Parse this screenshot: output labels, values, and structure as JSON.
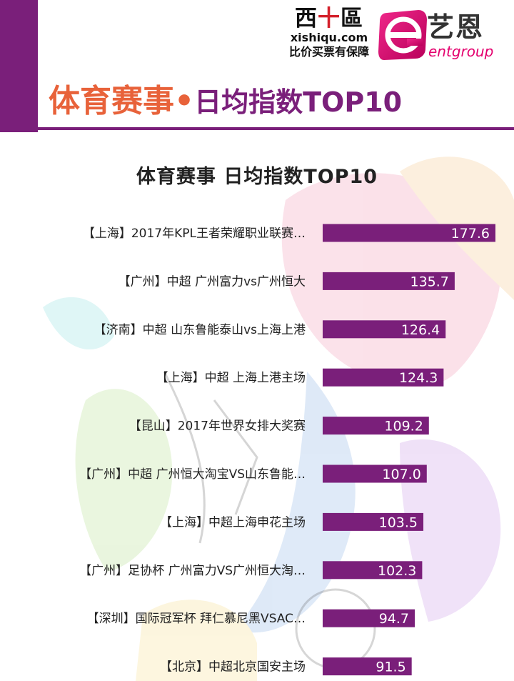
{
  "header": {
    "brand_logo": {
      "chars": [
        "西",
        "十",
        "區"
      ],
      "domain": "xishiqu.com",
      "slogan": "比价买票有保障",
      "accent_color": "#d4202a"
    },
    "partner_logo": {
      "name_cn": "艺恩",
      "name_en": "entgroup",
      "icon": "e-badge-icon",
      "accent_color": "#e4006e"
    },
    "title": {
      "part1": "体育赛事",
      "separator": "•",
      "part2": "日均指数TOP10"
    }
  },
  "colors": {
    "band": "#7a1f7a",
    "bar": "#7a1f7a",
    "title_orange": "#e8623a"
  },
  "chart_data": {
    "type": "bar",
    "orientation": "horizontal",
    "title": "体育赛事  日均指数TOP10",
    "categories": [
      "【上海】2017年KPL王者荣耀职业联赛…",
      "【广州】中超 广州富力vs广州恒大",
      "【济南】中超 山东鲁能泰山vs上海上港",
      "【上海】中超  上海上港主场",
      "【昆山】2017年世界女排大奖赛",
      "【广州】中超 广州恒大淘宝VS山东鲁能…",
      "【上海】中超上海申花主场",
      "【广州】足协杯  广州富力VS广州恒大淘…",
      "【深圳】国际冠军杯  拜仁慕尼黑VSAC…",
      "【北京】中超北京国安主场"
    ],
    "values": [
      177.6,
      135.7,
      126.4,
      124.3,
      109.2,
      107.0,
      103.5,
      102.3,
      94.7,
      91.5
    ],
    "value_labels": [
      "177.6",
      "135.7",
      "126.4",
      "124.3",
      "109.2",
      "107.0",
      "103.5",
      "102.3",
      "94.7",
      "91.5"
    ],
    "xlim": [
      0,
      177.6
    ],
    "grid": false,
    "legend": "none"
  }
}
